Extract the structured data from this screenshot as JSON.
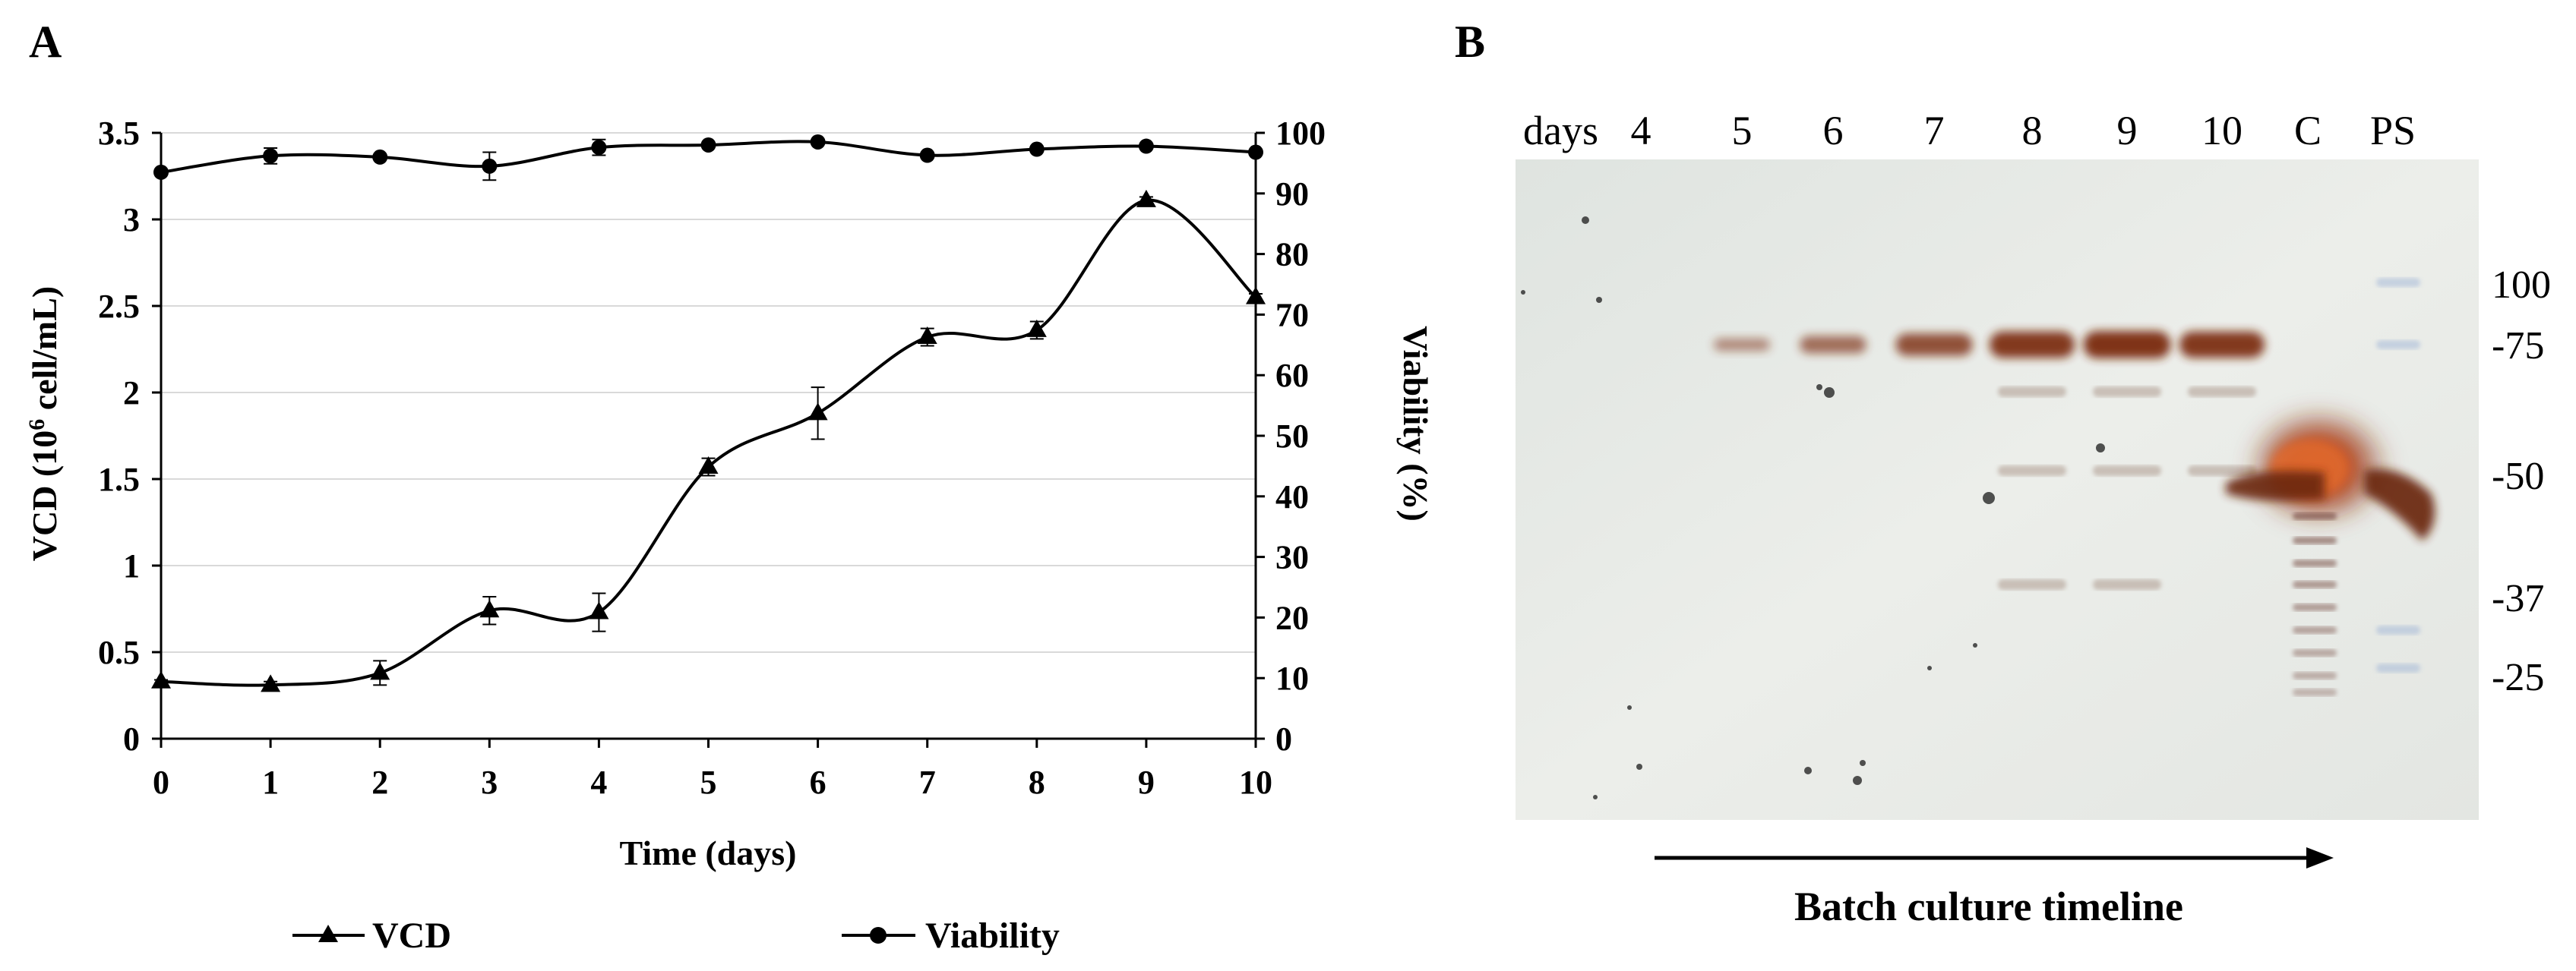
{
  "panels": {
    "a": "A",
    "b": "B"
  },
  "chart_data": [
    {
      "type": "line",
      "x": [
        0,
        1,
        2,
        3,
        4,
        5,
        6,
        7,
        8,
        9,
        10
      ],
      "xlabel": "Time (days)",
      "xlim": [
        0,
        10
      ],
      "y_left": {
        "label": "VCD (10",
        "label_sup": "6",
        "label_end": " cell/mL)",
        "lim": [
          0,
          3.5
        ],
        "ticks": [
          "0",
          "0.5",
          "1",
          "1.5",
          "2",
          "2.5",
          "3",
          "3.5"
        ],
        "tick_values": [
          0,
          0.5,
          1,
          1.5,
          2,
          2.5,
          3,
          3.5
        ]
      },
      "y_right": {
        "label": "Viability (%)",
        "lim": [
          0,
          100
        ],
        "ticks": [
          "0",
          "10",
          "20",
          "30",
          "40",
          "50",
          "60",
          "70",
          "80",
          "90",
          "100"
        ],
        "tick_values": [
          0,
          10,
          20,
          30,
          40,
          50,
          60,
          70,
          80,
          90,
          100
        ]
      },
      "x_ticks": [
        "0",
        "1",
        "2",
        "3",
        "4",
        "5",
        "6",
        "7",
        "8",
        "9",
        "10"
      ],
      "grid": "horizontal",
      "legend_position": "bottom",
      "series": [
        {
          "name": "VCD",
          "axis": "left",
          "marker": "triangle",
          "values": [
            0.33,
            0.31,
            0.38,
            0.74,
            0.73,
            1.57,
            1.88,
            2.32,
            2.36,
            3.11,
            2.55
          ],
          "errors": [
            0.01,
            0.02,
            0.07,
            0.08,
            0.11,
            0.05,
            0.15,
            0.05,
            0.05,
            0.02,
            0.02
          ]
        },
        {
          "name": "Viability",
          "axis": "right",
          "marker": "circle",
          "values": [
            93.5,
            96.2,
            96.0,
            94.5,
            97.6,
            98.0,
            98.5,
            96.3,
            97.3,
            97.8,
            96.8
          ],
          "errors": [
            0,
            1.3,
            0,
            2.3,
            1.3,
            0,
            0,
            0,
            0,
            0,
            0
          ]
        }
      ]
    },
    {
      "type": "blot",
      "lane_header": "days",
      "lanes": [
        "4",
        "5",
        "6",
        "7",
        "8",
        "9",
        "10",
        "C",
        "PS"
      ],
      "markers": [
        {
          "label": "100",
          "kda": 100
        },
        {
          "label": "-75",
          "kda": 75
        },
        {
          "label": "-50",
          "kda": 50
        },
        {
          "label": "-37",
          "kda": 37
        },
        {
          "label": "-25",
          "kda": 25
        }
      ],
      "main_band": {
        "kda": 75,
        "intensity_by_lane": [
          0,
          0.25,
          0.5,
          0.75,
          0.95,
          1.0,
          0.95,
          0,
          0
        ]
      },
      "caption": "Batch culture timeline"
    }
  ]
}
